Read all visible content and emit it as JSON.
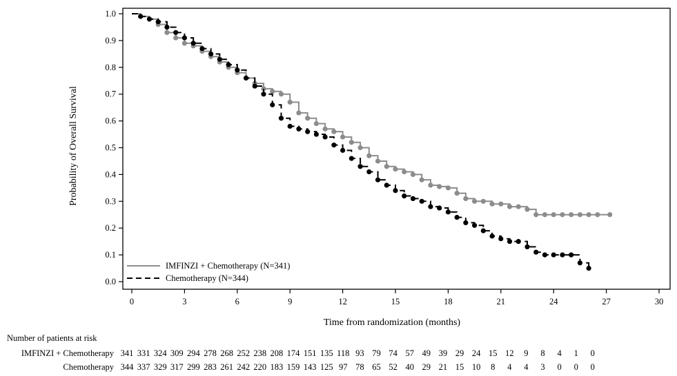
{
  "chart_data": {
    "type": "line",
    "title": "",
    "xlabel": "Time from randomization (months)",
    "ylabel": "Probability of Overall Survival",
    "xlim": [
      0,
      30
    ],
    "ylim": [
      0,
      1.0
    ],
    "x_ticks": [
      "0",
      "3",
      "6",
      "9",
      "12",
      "15",
      "18",
      "21",
      "24",
      "27",
      "30"
    ],
    "y_ticks": [
      "0.0",
      "0.1",
      "0.2",
      "0.3",
      "0.4",
      "0.5",
      "0.6",
      "0.7",
      "0.8",
      "0.9",
      "1.0"
    ],
    "grid": false,
    "legend_position": "bottom-left",
    "series": [
      {
        "name": "IMFINZI + Chemotherapy (N=341)",
        "color": "#8c8c8c",
        "line_style": "solid",
        "x": [
          0,
          0.5,
          1.0,
          1.5,
          2.0,
          2.5,
          3.0,
          3.5,
          4.0,
          4.5,
          5.0,
          5.5,
          6.0,
          6.5,
          7.0,
          7.5,
          8.0,
          8.5,
          9.0,
          9.5,
          10.0,
          10.5,
          11.0,
          11.5,
          12.0,
          12.5,
          13.0,
          13.5,
          14.0,
          14.5,
          15.0,
          15.5,
          16.0,
          16.5,
          17.0,
          17.5,
          18.0,
          18.5,
          19.0,
          19.5,
          20.0,
          20.5,
          21.0,
          21.5,
          22.0,
          22.5,
          23.0,
          23.5,
          24.0,
          24.5,
          25.0,
          25.5,
          26.0,
          26.5,
          27.2
        ],
        "y": [
          1.0,
          0.99,
          0.98,
          0.96,
          0.93,
          0.91,
          0.89,
          0.88,
          0.86,
          0.84,
          0.82,
          0.8,
          0.78,
          0.76,
          0.74,
          0.72,
          0.71,
          0.7,
          0.67,
          0.63,
          0.61,
          0.59,
          0.57,
          0.56,
          0.54,
          0.52,
          0.5,
          0.47,
          0.45,
          0.43,
          0.42,
          0.41,
          0.4,
          0.38,
          0.36,
          0.355,
          0.35,
          0.33,
          0.31,
          0.3,
          0.3,
          0.29,
          0.29,
          0.28,
          0.28,
          0.27,
          0.25,
          0.25,
          0.25,
          0.25,
          0.25,
          0.25,
          0.25,
          0.25,
          0.25
        ]
      },
      {
        "name": "Chemotherapy (N=344)",
        "color": "#000000",
        "line_style": "dashed",
        "x": [
          0,
          0.5,
          1.0,
          1.5,
          2.0,
          2.5,
          3.0,
          3.5,
          4.0,
          4.5,
          5.0,
          5.5,
          6.0,
          6.5,
          7.0,
          7.5,
          8.0,
          8.5,
          9.0,
          9.5,
          10.0,
          10.5,
          11.0,
          11.5,
          12.0,
          12.5,
          13.0,
          13.5,
          14.0,
          14.5,
          15.0,
          15.5,
          16.0,
          16.5,
          17.0,
          17.5,
          18.0,
          18.5,
          19.0,
          19.5,
          20.0,
          20.5,
          21.0,
          21.5,
          22.0,
          22.5,
          23.0,
          23.5,
          24.0,
          24.5,
          25.0,
          25.5,
          26.0
        ],
        "y": [
          1.0,
          0.99,
          0.98,
          0.97,
          0.95,
          0.93,
          0.91,
          0.89,
          0.87,
          0.85,
          0.83,
          0.81,
          0.79,
          0.76,
          0.73,
          0.7,
          0.66,
          0.61,
          0.58,
          0.57,
          0.56,
          0.55,
          0.54,
          0.51,
          0.49,
          0.46,
          0.43,
          0.41,
          0.38,
          0.36,
          0.34,
          0.32,
          0.31,
          0.3,
          0.28,
          0.275,
          0.26,
          0.24,
          0.22,
          0.21,
          0.19,
          0.17,
          0.16,
          0.15,
          0.15,
          0.13,
          0.11,
          0.1,
          0.1,
          0.1,
          0.1,
          0.07,
          0.05
        ]
      }
    ]
  },
  "risk_table": {
    "title": "Number of patients at risk",
    "rows": [
      {
        "label": "IMFINZI + Chemotherapy",
        "values": [
          "341",
          "331",
          "324",
          "309",
          "294",
          "278",
          "268",
          "252",
          "238",
          "208",
          "174",
          "151",
          "135",
          "118",
          "93",
          "79",
          "74",
          "57",
          "49",
          "39",
          "29",
          "24",
          "15",
          "12",
          "9",
          "8",
          "4",
          "1",
          "0"
        ]
      },
      {
        "label": "Chemotherapy",
        "values": [
          "344",
          "337",
          "329",
          "317",
          "299",
          "283",
          "261",
          "242",
          "220",
          "183",
          "159",
          "143",
          "125",
          "97",
          "78",
          "65",
          "52",
          "40",
          "29",
          "21",
          "15",
          "10",
          "8",
          "4",
          "4",
          "3",
          "0",
          "0",
          "0"
        ]
      }
    ]
  }
}
